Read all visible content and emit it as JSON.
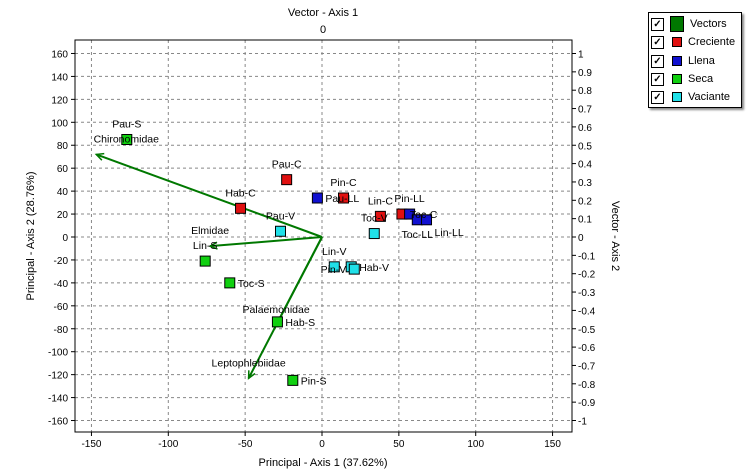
{
  "chart_data": {
    "type": "scatter",
    "xlabel": "Principal - Axis 1 (37.62%)",
    "ylabel": "Principal - Axis 2 (28.76%)",
    "top_label": "Vector - Axis 1",
    "right_label": "Vector - Axis 2",
    "top_ticks": [
      "0"
    ],
    "xlim": [
      -160,
      160
    ],
    "ylim": [
      -168,
      168
    ],
    "xticks": [
      -150,
      -100,
      -50,
      0,
      50,
      100,
      150
    ],
    "yticks": [
      160,
      140,
      120,
      100,
      80,
      60,
      40,
      20,
      0,
      -20,
      -40,
      -60,
      -80,
      -100,
      -120,
      -140,
      -160
    ],
    "right_ticks": [
      "1",
      "0.9",
      "0.8",
      "0.7",
      "0.6",
      "0.5",
      "0.4",
      "0.3",
      "0.2",
      "0.1",
      "0",
      "-0.1",
      "-0.2",
      "-0.3",
      "-0.4",
      "-0.5",
      "-0.6",
      "-0.7",
      "-0.8",
      "-0.9",
      "-1"
    ],
    "grid": true,
    "legend_position": "top-right (outside)",
    "legend": [
      {
        "name": "Vectors",
        "color": "#007800",
        "checked": true
      },
      {
        "name": "Creciente",
        "color": "#e01010",
        "checked": true
      },
      {
        "name": "Llena",
        "color": "#1010d0",
        "checked": true
      },
      {
        "name": "Seca",
        "color": "#10d010",
        "checked": true
      },
      {
        "name": "Vaciante",
        "color": "#20e0e8",
        "checked": true
      }
    ],
    "series": [
      {
        "name": "Creciente",
        "color": "#e01010",
        "points": [
          {
            "label": "Pau-C",
            "x": -23,
            "y": 50
          },
          {
            "label": "Hab-C",
            "x": -53,
            "y": 25
          },
          {
            "label": "Pin-C",
            "x": 14,
            "y": 34
          },
          {
            "label": "Lin-C",
            "x": 38,
            "y": 18
          },
          {
            "label": "Toc-C",
            "x": 52,
            "y": 20
          }
        ]
      },
      {
        "name": "Llena",
        "color": "#1010d0",
        "points": [
          {
            "label": "Pau-LL",
            "x": -3,
            "y": 34
          },
          {
            "label": "Pin-LL",
            "x": 57,
            "y": 20
          },
          {
            "label": "Toc-LL",
            "x": 62,
            "y": 15
          },
          {
            "label": "Lin-LL",
            "x": 68,
            "y": 15
          }
        ]
      },
      {
        "name": "Seca",
        "color": "#10d010",
        "points": [
          {
            "label": "Pau-S",
            "x": -127,
            "y": 85
          },
          {
            "label": "Lin-S",
            "x": -76,
            "y": -21
          },
          {
            "label": "Toc-S",
            "x": -60,
            "y": -40
          },
          {
            "label": "Hab-S",
            "x": -29,
            "y": -74
          },
          {
            "label": "Pin-S",
            "x": -19,
            "y": -125
          }
        ]
      },
      {
        "name": "Vaciante",
        "color": "#20e0e8",
        "points": [
          {
            "label": "Pau-V",
            "x": -27,
            "y": 5
          },
          {
            "label": "Toc-V",
            "x": 34,
            "y": 3
          },
          {
            "label": "Lin-V",
            "x": 8,
            "y": -26
          },
          {
            "label": "Hab-V",
            "x": 19,
            "y": -26
          },
          {
            "label": "Pin-V",
            "x": 21,
            "y": -28
          }
        ]
      }
    ],
    "vectors": [
      {
        "label": "Chironomidae",
        "x": -1.23,
        "y": 0.45
      },
      {
        "label": "Elmidae",
        "x": -0.61,
        "y": -0.05
      },
      {
        "label": "Palaemonidae",
        "x": -0.25,
        "y": -0.48
      },
      {
        "label": "Leptophlebiidae",
        "x": -0.4,
        "y": -0.77
      }
    ]
  }
}
